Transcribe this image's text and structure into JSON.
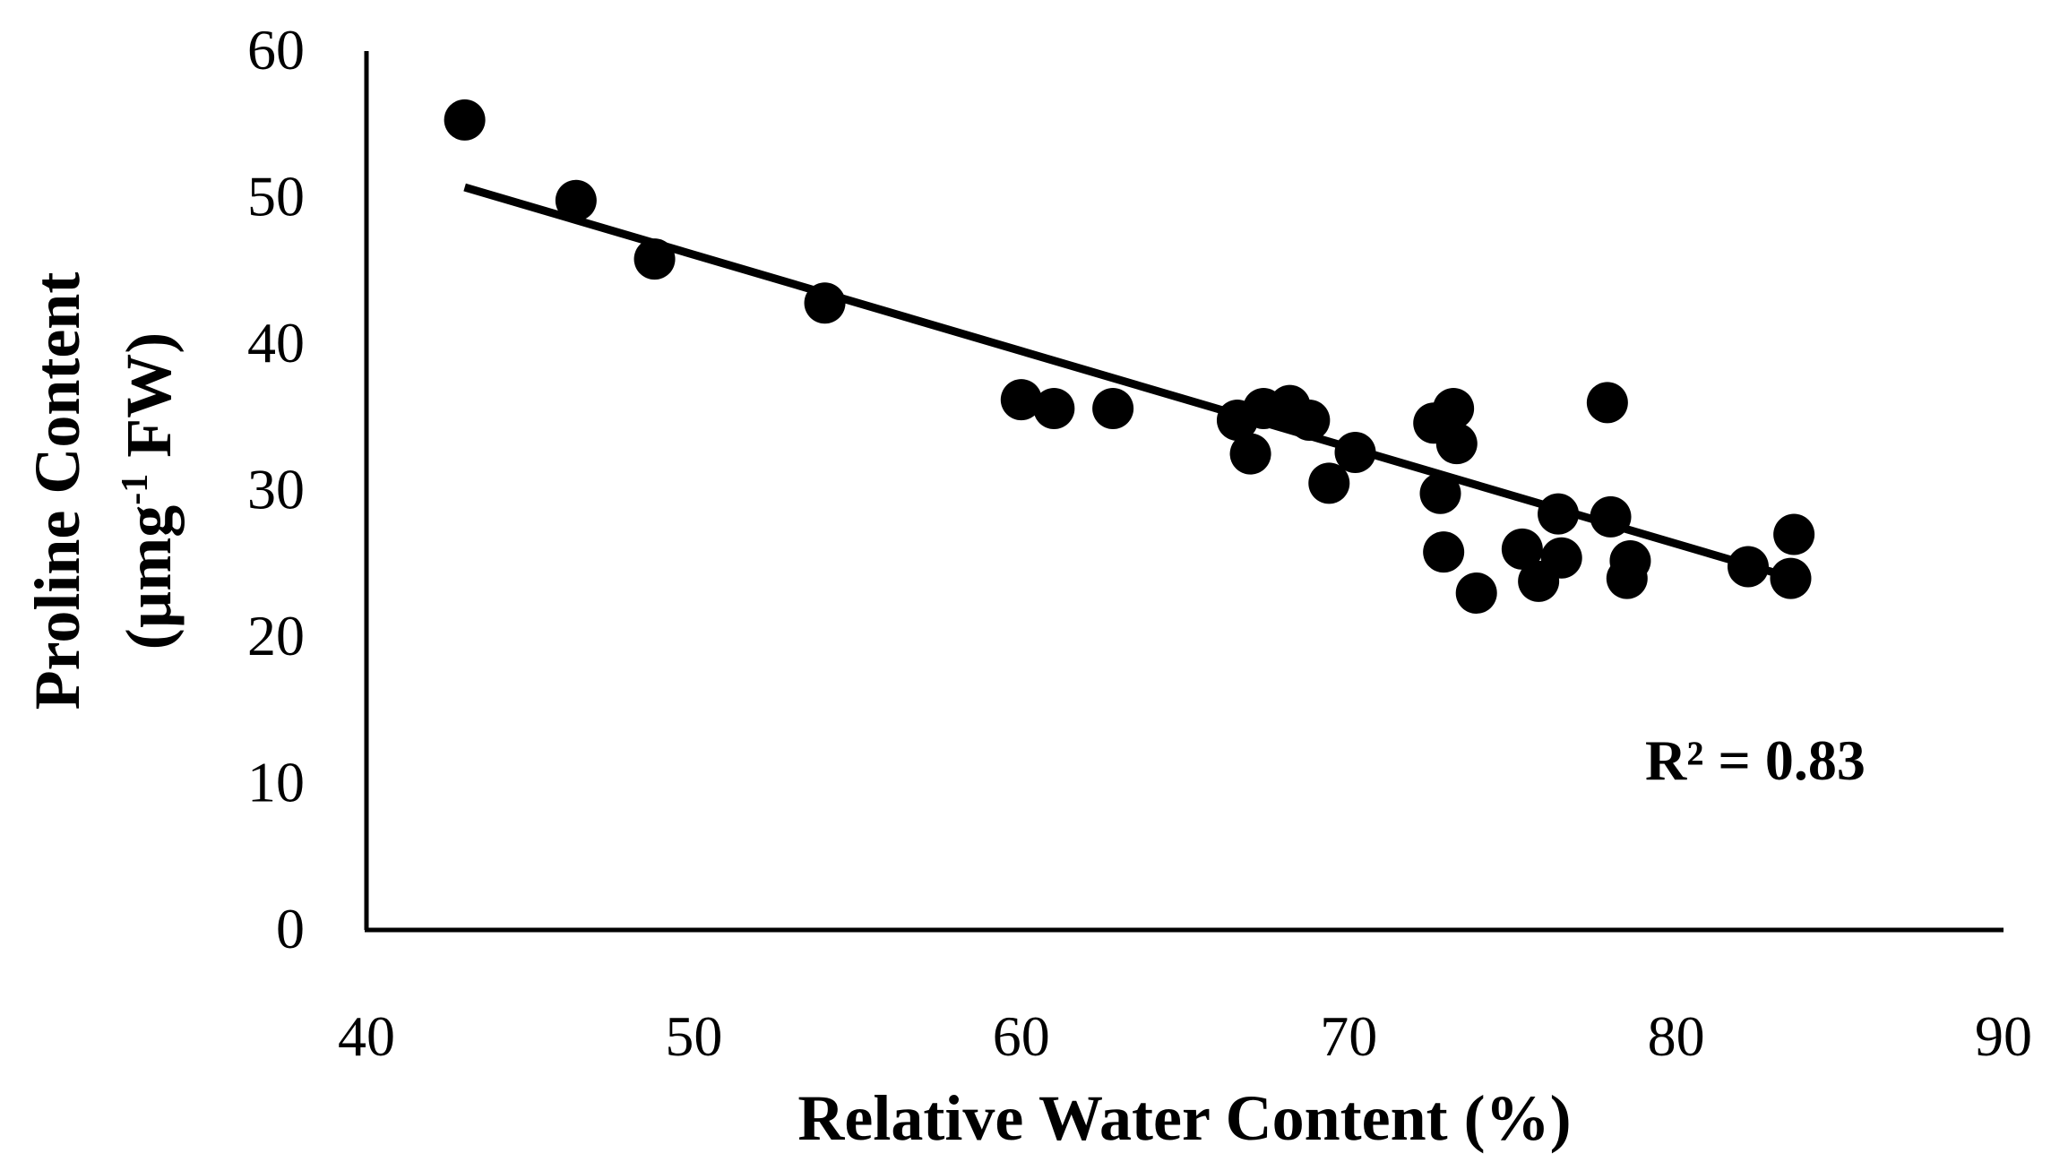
{
  "chart_data": {
    "type": "scatter",
    "title": "",
    "xlabel": "Relative Water Content (%)",
    "ylabel_line1": "Proline Content",
    "ylabel_line2_prefix": "(µmg",
    "ylabel_line2_sup": "-1",
    "ylabel_line2_suffix": " FW)",
    "xlim": [
      40,
      90
    ],
    "ylim": [
      0,
      60
    ],
    "xticks": [
      40,
      50,
      60,
      70,
      80,
      90
    ],
    "yticks": [
      0,
      10,
      20,
      30,
      40,
      50,
      60
    ],
    "grid": false,
    "legend": "none",
    "points": [
      {
        "x": 43.0,
        "y": 55.3
      },
      {
        "x": 46.4,
        "y": 49.8
      },
      {
        "x": 48.8,
        "y": 45.8
      },
      {
        "x": 54.0,
        "y": 42.8
      },
      {
        "x": 60.0,
        "y": 36.2
      },
      {
        "x": 61.0,
        "y": 35.6
      },
      {
        "x": 62.8,
        "y": 35.6
      },
      {
        "x": 66.6,
        "y": 34.8
      },
      {
        "x": 67.0,
        "y": 32.5
      },
      {
        "x": 67.4,
        "y": 35.6
      },
      {
        "x": 68.2,
        "y": 35.8
      },
      {
        "x": 68.8,
        "y": 34.8
      },
      {
        "x": 69.4,
        "y": 30.5
      },
      {
        "x": 70.2,
        "y": 32.6
      },
      {
        "x": 72.6,
        "y": 34.6
      },
      {
        "x": 72.8,
        "y": 29.8
      },
      {
        "x": 72.9,
        "y": 25.8
      },
      {
        "x": 73.2,
        "y": 35.6
      },
      {
        "x": 73.3,
        "y": 33.2
      },
      {
        "x": 73.9,
        "y": 23.0
      },
      {
        "x": 75.3,
        "y": 26.0
      },
      {
        "x": 75.8,
        "y": 23.8
      },
      {
        "x": 76.4,
        "y": 28.4
      },
      {
        "x": 76.5,
        "y": 25.4
      },
      {
        "x": 77.9,
        "y": 36.0
      },
      {
        "x": 78.0,
        "y": 28.2
      },
      {
        "x": 78.5,
        "y": 24.0
      },
      {
        "x": 78.6,
        "y": 25.2
      },
      {
        "x": 82.2,
        "y": 24.8
      },
      {
        "x": 83.5,
        "y": 24.0
      },
      {
        "x": 83.6,
        "y": 27.0
      }
    ],
    "trendline": {
      "type": "linear",
      "x_start": 43.0,
      "y_start": 50.7,
      "x_end": 83.6,
      "y_end": 24.0
    },
    "annotations": {
      "r2_label": "R² = 0.83"
    },
    "colors": {
      "marker": "#000000",
      "line": "#000000",
      "axis": "#000000"
    }
  }
}
